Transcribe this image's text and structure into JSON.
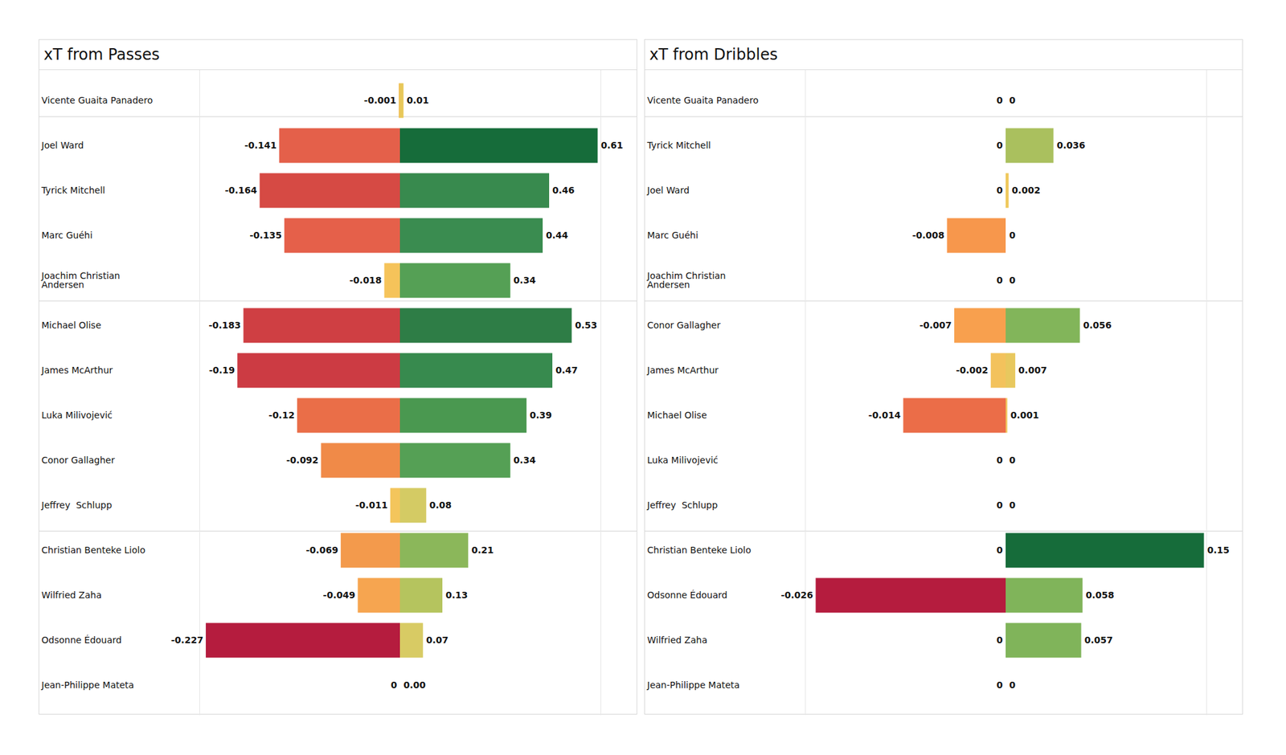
{
  "chart_data": [
    {
      "type": "bar",
      "title": "xT from Passes",
      "orientation": "horizontal",
      "data_labels": true,
      "tick_labels": "y",
      "categories": [
        "Vicente Guaita Panadero",
        "Joel Ward",
        "Tyrick Mitchell",
        "Marc Guéhi",
        "Joachim Christian\nAndersen",
        "Michael Olise",
        "James McArthur",
        "Luka Milivojević",
        "Conor Gallagher",
        "Jeffrey  Schlupp",
        "Christian Benteke Liolo",
        "Wilfried Zaha",
        "Odsonne Édouard",
        "Jean-Philippe Mateta"
      ],
      "series": [
        {
          "values": [
            -0.001,
            -0.141,
            -0.164,
            -0.135,
            -0.018,
            -0.183,
            -0.19,
            -0.12,
            -0.092,
            -0.011,
            -0.069,
            -0.049,
            -0.227,
            0
          ],
          "colors": [
            "#f0c05a",
            "#e4604a",
            "#d64a44",
            "#e5604a",
            "#f5c35a",
            "#cf3f43",
            "#cc3b43",
            "#ea6e48",
            "#f08a48",
            "#f3c55c",
            "#f39a4c",
            "#f6a550",
            "#b51c3e",
            "#f0c55c"
          ],
          "xlim": [
            -0.235,
            0
          ]
        },
        {
          "values": [
            0.01,
            0.61,
            0.46,
            0.44,
            0.34,
            0.53,
            0.47,
            0.39,
            0.34,
            0.08,
            0.21,
            0.13,
            0.07,
            0
          ],
          "value_labels": [
            "0.01",
            "0.61",
            "0.46",
            "0.44",
            "0.34",
            "0.53",
            "0.47",
            "0.39",
            "0.34",
            "0.08",
            "0.21",
            "0.13",
            "0.07",
            "0.00"
          ],
          "colors": [
            "#e8c85a",
            "#166c3a",
            "#388a4e",
            "#3a8c50",
            "#55a055",
            "#2e7d46",
            "#378a4e",
            "#4a9850",
            "#55a055",
            "#d4cb64",
            "#8bb75a",
            "#b5c45e",
            "#d8cb64",
            "#f0c55c"
          ],
          "xlim": [
            0,
            0.62
          ]
        }
      ]
    },
    {
      "type": "bar",
      "title": "xT from Dribbles",
      "orientation": "horizontal",
      "data_labels": true,
      "tick_labels": "y",
      "categories": [
        "Vicente Guaita Panadero",
        "Tyrick Mitchell",
        "Joel Ward",
        "Marc Guéhi",
        "Joachim Christian\nAndersen",
        "Conor Gallagher",
        "James McArthur",
        "Michael Olise",
        "Luka Milivojević",
        "Jeffrey  Schlupp",
        "Christian Benteke Liolo",
        "Odsonne Édouard",
        "Wilfried Zaha",
        "Jean-Philippe Mateta"
      ],
      "series": [
        {
          "values": [
            0,
            0,
            0,
            -0.008,
            0,
            -0.007,
            -0.002,
            -0.014,
            0,
            0,
            0,
            -0.026,
            0,
            0
          ],
          "colors": [
            "#f0c55c",
            "#f0c55c",
            "#f0c55c",
            "#f7974c",
            "#f0c55c",
            "#f8a04e",
            "#f3c25c",
            "#eb6d48",
            "#f0c55c",
            "#f0c55c",
            "#f0c55c",
            "#b51c3e",
            "#f0c55c",
            "#f0c55c"
          ],
          "xlim": [
            -0.0275,
            0
          ]
        },
        {
          "values": [
            0,
            0.036,
            0.002,
            0,
            0,
            0.056,
            0.007,
            0.001,
            0,
            0,
            0.15,
            0.058,
            0.057,
            0
          ],
          "colors": [
            "#f0c55c",
            "#aac05e",
            "#efc85c",
            "#f0c55c",
            "#f0c55c",
            "#82b55a",
            "#e8c85e",
            "#f0c45c",
            "#f0c55c",
            "#f0c55c",
            "#166c3a",
            "#80b45a",
            "#80b45a",
            "#f0c55c"
          ],
          "xlim": [
            0,
            0.152
          ]
        }
      ]
    }
  ]
}
